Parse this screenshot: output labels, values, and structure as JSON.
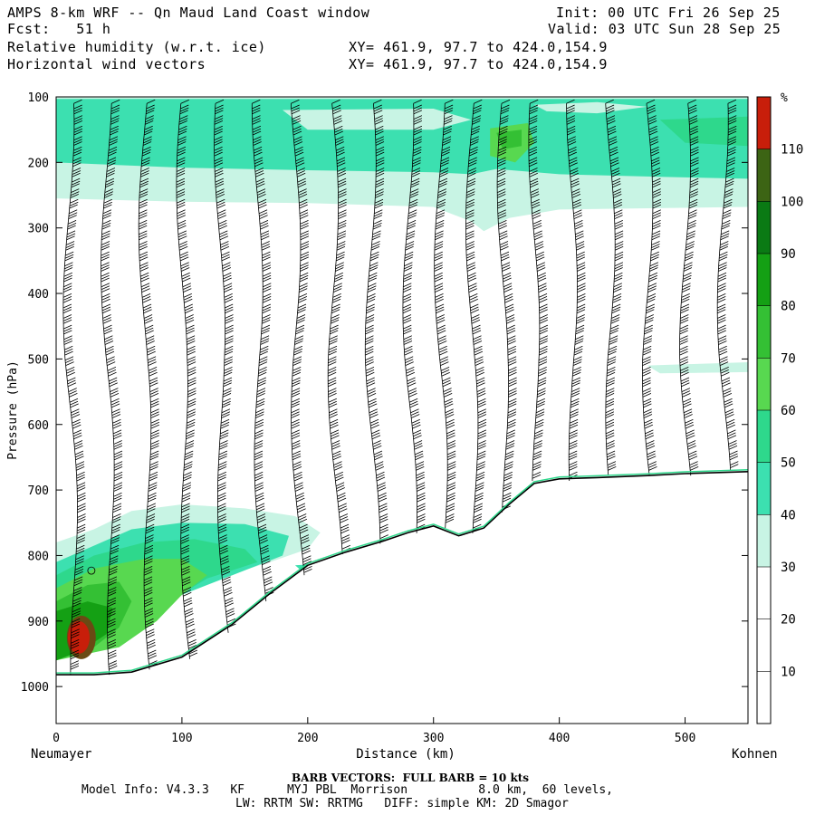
{
  "header": {
    "title": "AMPS 8-km WRF -- Qn Maud Land Coast window",
    "init": "Init: 00 UTC Fri 26 Sep 25",
    "fcst": "Fcst:   51 h",
    "valid": "Valid: 03 UTC Sun 28 Sep 25",
    "field1": "Relative humidity (w.r.t. ice)",
    "field2": "Horizontal wind vectors",
    "xy1": "XY= 461.9, 97.7 to 424.0,154.9",
    "xy2": "XY= 461.9, 97.7 to 424.0,154.9"
  },
  "footer": {
    "barb": "BARB VECTORS:  FULL BARB = 10 kts",
    "model1": "Model Info: V4.3.3   KF      MYJ PBL  Morrison          8.0 km,  60 levels,",
    "model2": "LW: RRTM SW: RRTMG   DIFF: simple KM: 2D Smagor"
  },
  "colors": {
    "c30": "#c8f4e4",
    "c40": "#3ce0b0",
    "c50": "#2ed88c",
    "c60": "#58d850",
    "c70": "#34c034",
    "c80": "#14a014",
    "c90": "#0a7a14",
    "c100": "#3c6414",
    "c110": "#c81e0a"
  },
  "chart_data": {
    "type": "cross-section",
    "xlabel": "Distance (km)",
    "ylabel": "Pressure (hPa)",
    "xlim": [
      0,
      550
    ],
    "ylim": [
      1050,
      100
    ],
    "x_ticks": [
      0,
      100,
      200,
      300,
      400,
      500
    ],
    "y_ticks": [
      100,
      200,
      300,
      400,
      500,
      600,
      700,
      800,
      900,
      1000
    ],
    "left_location": "Neumayer",
    "right_location": "Kohnen",
    "colorbar": {
      "unit": "%",
      "levels": [
        10,
        20,
        30,
        40,
        50,
        60,
        70,
        80,
        90,
        100,
        110
      ],
      "colors": [
        "#ffffff",
        "#ffffff",
        "#ffffff",
        "#c8f4e4",
        "#3ce0b0",
        "#2ed88c",
        "#58d850",
        "#34c034",
        "#14a014",
        "#0a7a14",
        "#3c6414",
        "#c81e0a"
      ]
    },
    "terrain": {
      "distance_km": [
        0,
        30,
        60,
        100,
        140,
        170,
        200,
        230,
        260,
        280,
        300,
        320,
        340,
        360,
        380,
        400,
        430,
        470,
        500,
        550
      ],
      "pressure_hPa": [
        982,
        982,
        978,
        955,
        905,
        858,
        815,
        795,
        778,
        765,
        755,
        770,
        758,
        722,
        690,
        683,
        681,
        678,
        675,
        672
      ]
    },
    "barb_columns_km": [
      10,
      40,
      70,
      100,
      130,
      160,
      190,
      220,
      250,
      280,
      305,
      330,
      355,
      380,
      410,
      440,
      470,
      500,
      530
    ]
  }
}
